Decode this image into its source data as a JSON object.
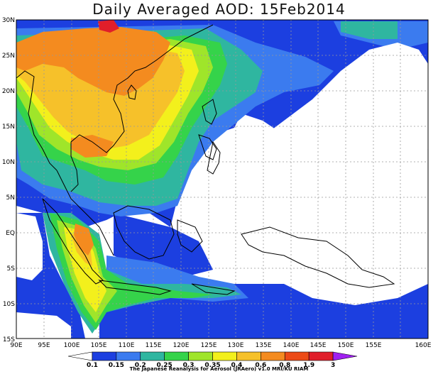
{
  "title": "Daily Averaged AOD: 15Feb2014",
  "lat_labels": [
    "30N",
    "25N",
    "20N",
    "15N",
    "10N",
    "5N",
    "EQ",
    "5S",
    "10S",
    "15S"
  ],
  "lon_labels": [
    "90E",
    "95E",
    "100E",
    "105E",
    "110E",
    "115E",
    "120E",
    "125E",
    "130E",
    "135E",
    "140E",
    "145E",
    "150E",
    "155E",
    "160E"
  ],
  "colorbar": {
    "labels": [
      "0.1",
      "0.15",
      "0.2",
      "0.25",
      "0.3",
      "0.35",
      "0.4",
      "0.6",
      "0.8",
      "1.9",
      "3"
    ],
    "colors": [
      "#ffffff",
      "#1c3fe0",
      "#3b7bef",
      "#2fb6a0",
      "#35d34a",
      "#9fe52a",
      "#f3f01c",
      "#f6c12a",
      "#f48b1f",
      "#ec4a16",
      "#e01e2a",
      "#a020f0"
    ]
  },
  "credit": "The Japanese Reanalysis for Aerosol (JRAero) v1.0 MRI/KU RIAM",
  "palette": {
    "blue": "#1c3fe0",
    "lightblue": "#3b7bef",
    "teal": "#2fb6a0",
    "green": "#35d34a",
    "lime": "#9fe52a",
    "yellow": "#f3f01c",
    "gold": "#f6c12a",
    "orange": "#f48b1f",
    "redorange": "#ec4a16",
    "red": "#e01e2a"
  }
}
